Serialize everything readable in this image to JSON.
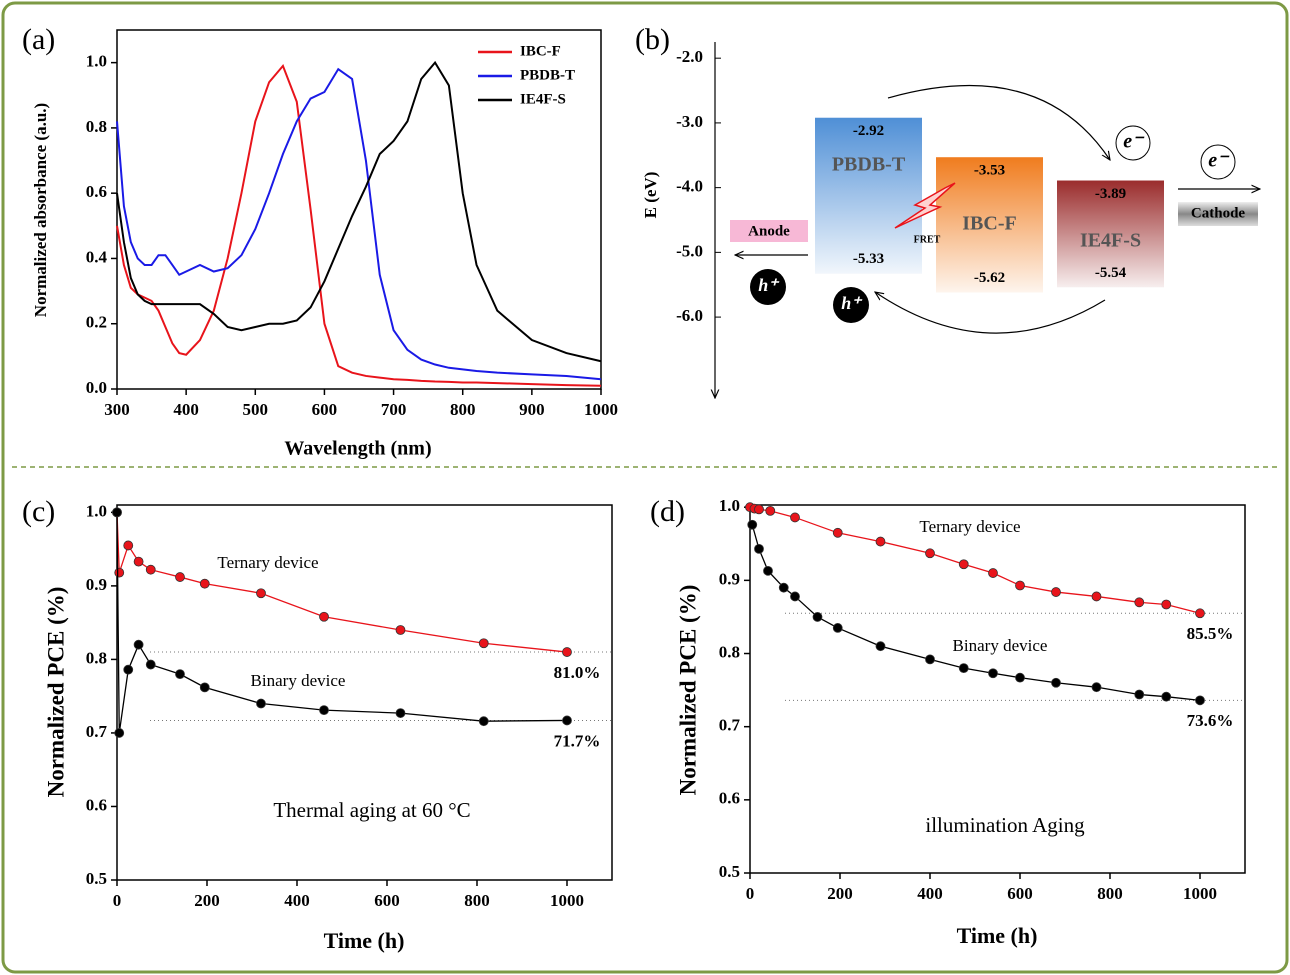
{
  "chart_data": [
    {
      "type": "line",
      "panel_label": "(a)",
      "x_label": "Wavelength (nm)",
      "y_label": "Normalized absorbance (a.u.)",
      "xlim": [
        300,
        1000
      ],
      "ylim": [
        0,
        1.1
      ],
      "xticks": [
        300,
        400,
        500,
        600,
        700,
        800,
        900,
        1000
      ],
      "yticks": [
        {
          "value": 0,
          "label": "0.0"
        },
        0.2,
        0.4,
        0.6,
        0.8,
        {
          "value": 1,
          "label": "1.0"
        }
      ],
      "legend": "upper right",
      "x": [
        300,
        310,
        320,
        330,
        340,
        350,
        360,
        370,
        380,
        390,
        400,
        420,
        440,
        460,
        480,
        500,
        520,
        540,
        560,
        580,
        600,
        620,
        640,
        660,
        680,
        700,
        720,
        740,
        760,
        780,
        800,
        820,
        850,
        900,
        950,
        1000
      ],
      "series": [
        {
          "name": "IBC-F",
          "color": "#e8141b",
          "values": [
            0.5,
            0.38,
            0.31,
            0.29,
            0.28,
            0.27,
            0.24,
            0.19,
            0.14,
            0.11,
            0.105,
            0.15,
            0.24,
            0.4,
            0.6,
            0.82,
            0.94,
            0.99,
            0.88,
            0.55,
            0.2,
            0.07,
            0.05,
            0.04,
            0.035,
            0.03,
            0.028,
            0.025,
            0.023,
            0.022,
            0.02,
            0.02,
            0.018,
            0.015,
            0.012,
            0.01
          ]
        },
        {
          "name": "PBDB-T",
          "color": "#1a1ae6",
          "values": [
            0.82,
            0.56,
            0.45,
            0.4,
            0.38,
            0.38,
            0.41,
            0.41,
            0.38,
            0.35,
            0.36,
            0.38,
            0.36,
            0.37,
            0.41,
            0.49,
            0.6,
            0.72,
            0.82,
            0.89,
            0.91,
            0.98,
            0.95,
            0.7,
            0.35,
            0.18,
            0.12,
            0.09,
            0.075,
            0.065,
            0.06,
            0.055,
            0.05,
            0.045,
            0.04,
            0.03
          ]
        },
        {
          "name": "IE4F-S",
          "color": "#000000",
          "values": [
            0.6,
            0.45,
            0.34,
            0.29,
            0.27,
            0.26,
            0.26,
            0.26,
            0.26,
            0.26,
            0.26,
            0.26,
            0.23,
            0.19,
            0.18,
            0.19,
            0.2,
            0.2,
            0.21,
            0.25,
            0.33,
            0.43,
            0.53,
            0.62,
            0.72,
            0.76,
            0.82,
            0.95,
            1.0,
            0.93,
            0.6,
            0.38,
            0.24,
            0.15,
            0.11,
            0.085
          ]
        }
      ]
    },
    {
      "type": "energy_diagram",
      "panel_label": "(b)",
      "y_label": "E (eV)",
      "ylim": [
        -7.25,
        -1.75
      ],
      "yticks": [
        {
          "value": -2,
          "label": "-2.0"
        },
        {
          "value": -3,
          "label": "-3.0"
        },
        {
          "value": -4,
          "label": "-4.0"
        },
        {
          "value": -5,
          "label": "-5.0"
        },
        {
          "value": -6,
          "label": "-6.0"
        }
      ],
      "levels": [
        {
          "name": "PBDB-T",
          "color": "#4f8fd6",
          "lumo": -2.92,
          "homo": -5.33
        },
        {
          "name": "IBC-F",
          "color": "#f07c1e",
          "lumo": -3.53,
          "homo": -5.62
        },
        {
          "name": "IE4F-S",
          "color": "#9a2c2c",
          "lumo": -3.89,
          "homo": -5.54
        }
      ],
      "anode": "Anode",
      "cathode": "Cathode",
      "fret": "FRET",
      "electron": "e⁻",
      "hole": "h⁺"
    },
    {
      "type": "line",
      "markers": true,
      "panel_label": "(c)",
      "x_label": "Time (h)",
      "y_label": "Normalized PCE (%)",
      "xlim": [
        0,
        1100
      ],
      "ylim": [
        0.5,
        1.01
      ],
      "xticks": [
        0,
        200,
        400,
        600,
        800,
        1000
      ],
      "yticks": [
        0.5,
        0.6,
        0.7,
        0.8,
        0.9,
        {
          "value": 1,
          "label": "1.0"
        }
      ],
      "annotations": [
        "Ternary device",
        "Binary device",
        "Thermal aging at 60 °C"
      ],
      "series": [
        {
          "name": "Ternary device",
          "color": "#e8141b",
          "x": [
            0,
            5,
            25,
            48,
            75,
            140,
            195,
            320,
            460,
            630,
            815,
            1000
          ],
          "values": [
            1.0,
            0.918,
            0.955,
            0.933,
            0.922,
            0.912,
            0.903,
            0.89,
            0.858,
            0.84,
            0.822,
            0.81
          ],
          "value_labels": [
            null,
            null,
            null,
            null,
            null,
            null,
            null,
            null,
            null,
            null,
            null,
            "81.0%"
          ]
        },
        {
          "name": "Binary device",
          "color": "#000000",
          "x": [
            0,
            5,
            25,
            48,
            75,
            140,
            195,
            320,
            460,
            630,
            815,
            1000
          ],
          "values": [
            1.0,
            0.7,
            0.786,
            0.82,
            0.793,
            0.78,
            0.762,
            0.74,
            0.731,
            0.727,
            0.716,
            0.717
          ],
          "value_labels": [
            null,
            null,
            null,
            null,
            null,
            null,
            null,
            null,
            null,
            null,
            null,
            "71.7%"
          ]
        }
      ]
    },
    {
      "type": "line",
      "markers": true,
      "panel_label": "(d)",
      "x_label": "Time (h)",
      "y_label": "Normalized PCE (%)",
      "xlim": [
        0,
        1100
      ],
      "ylim": [
        0.5,
        1.003
      ],
      "xticks": [
        0,
        200,
        400,
        600,
        800,
        1000
      ],
      "yticks": [
        0.5,
        0.6,
        0.7,
        0.8,
        0.9,
        {
          "value": 1,
          "label": "1.0"
        }
      ],
      "annotations": [
        "Ternary device",
        "Binary device",
        "illumination Aging"
      ],
      "series": [
        {
          "name": "Ternary device",
          "color": "#e8141b",
          "x": [
            0,
            10,
            20,
            45,
            100,
            195,
            290,
            400,
            475,
            540,
            600,
            680,
            770,
            865,
            925,
            1000
          ],
          "values": [
            1.0,
            0.998,
            0.997,
            0.995,
            0.986,
            0.965,
            0.953,
            0.937,
            0.922,
            0.91,
            0.893,
            0.884,
            0.878,
            0.87,
            0.867,
            0.855
          ],
          "value_labels": [
            null,
            null,
            null,
            null,
            null,
            null,
            null,
            null,
            null,
            null,
            null,
            null,
            null,
            null,
            null,
            "85.5%"
          ]
        },
        {
          "name": "Binary device",
          "color": "#000000",
          "x": [
            5,
            20,
            40,
            75,
            100,
            150,
            195,
            290,
            400,
            475,
            540,
            600,
            680,
            770,
            865,
            925,
            1000
          ],
          "values": [
            0.976,
            0.943,
            0.913,
            0.89,
            0.878,
            0.85,
            0.835,
            0.81,
            0.792,
            0.78,
            0.773,
            0.767,
            0.76,
            0.754,
            0.744,
            0.741,
            0.736
          ],
          "value_labels": [
            null,
            null,
            null,
            null,
            null,
            null,
            null,
            null,
            null,
            null,
            null,
            null,
            null,
            null,
            null,
            null,
            "73.6%"
          ]
        }
      ]
    }
  ]
}
